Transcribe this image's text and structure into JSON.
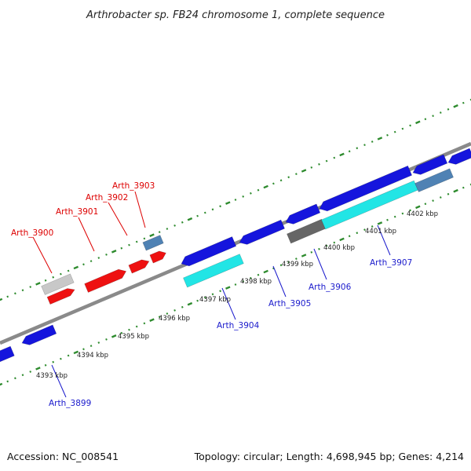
{
  "title": "Arthrobacter sp. FB24 chromosome 1, complete sequence",
  "footer": {
    "accession": "Accession: NC_008541",
    "summary": "Topology: circular; Length: 4,698,945 bp; Genes: 4,214"
  },
  "colors": {
    "backbone": "#8a8a8a",
    "tick_dots": "#2e8b2e",
    "forward_label": "#dd0000",
    "reverse_label": "#1a1acc",
    "forward_gene": "#ee1111",
    "reverse_gene": "#1515dd",
    "highlight_gene": "#22e5e5",
    "pseudo_gene": "#c8c8c8",
    "rna_gene": "#4f82b4",
    "dark_gene": "#666666"
  },
  "scale_ticks": [
    {
      "label": "4393 kbp"
    },
    {
      "label": "4394 kbp"
    },
    {
      "label": "4395 kbp"
    },
    {
      "label": "4396 kbp"
    },
    {
      "label": "4397 kbp"
    },
    {
      "label": "4398 kbp"
    },
    {
      "label": "4399 kbp"
    },
    {
      "label": "4400 kbp"
    },
    {
      "label": "4401 kbp"
    },
    {
      "label": "4402 kbp"
    }
  ],
  "forward_labels": [
    "Arth_3900",
    "Arth_3901",
    "Arth_3902",
    "Arth_3903"
  ],
  "reverse_labels": [
    "Arth_3899",
    "Arth_3904",
    "Arth_3905",
    "Arth_3906",
    "Arth_3907"
  ]
}
